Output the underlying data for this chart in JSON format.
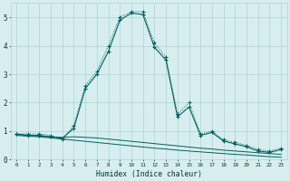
{
  "xlabel": "Humidex (Indice chaleur)",
  "x": [
    0,
    1,
    2,
    3,
    4,
    5,
    6,
    7,
    8,
    9,
    10,
    11,
    12,
    13,
    14,
    15,
    16,
    17,
    18,
    19,
    20,
    21,
    22,
    23
  ],
  "line_dotted": [
    0.9,
    0.9,
    0.9,
    0.85,
    0.7,
    1.2,
    2.6,
    3.1,
    4.0,
    5.0,
    5.2,
    5.2,
    4.1,
    3.6,
    1.6,
    2.0,
    0.9,
    1.0,
    0.7,
    0.6,
    0.5,
    0.35,
    0.3,
    0.4
  ],
  "line_solid": [
    0.9,
    0.85,
    0.85,
    0.8,
    0.75,
    1.1,
    2.5,
    3.0,
    3.8,
    4.9,
    5.15,
    5.1,
    3.95,
    3.5,
    1.5,
    1.85,
    0.85,
    0.95,
    0.65,
    0.55,
    0.45,
    0.3,
    0.25,
    0.35
  ],
  "line_flat1": [
    0.88,
    0.85,
    0.83,
    0.8,
    0.78,
    0.8,
    0.78,
    0.76,
    0.72,
    0.68,
    0.64,
    0.6,
    0.56,
    0.52,
    0.48,
    0.44,
    0.4,
    0.37,
    0.33,
    0.3,
    0.27,
    0.24,
    0.21,
    0.18
  ],
  "line_flat2": [
    0.85,
    0.82,
    0.8,
    0.76,
    0.72,
    0.68,
    0.64,
    0.6,
    0.56,
    0.52,
    0.48,
    0.44,
    0.4,
    0.37,
    0.33,
    0.3,
    0.27,
    0.24,
    0.21,
    0.18,
    0.16,
    0.13,
    0.1,
    0.08
  ],
  "bg_color": "#d8eeee",
  "grid_color": "#aad4d4",
  "line_color": "#006060",
  "ylim": [
    0,
    5.5
  ],
  "xlim": [
    -0.5,
    23.5
  ],
  "yticks": [
    0,
    1,
    2,
    3,
    4,
    5
  ],
  "xticks": [
    0,
    1,
    2,
    3,
    4,
    5,
    6,
    7,
    8,
    9,
    10,
    11,
    12,
    13,
    14,
    15,
    16,
    17,
    18,
    19,
    20,
    21,
    22,
    23
  ]
}
